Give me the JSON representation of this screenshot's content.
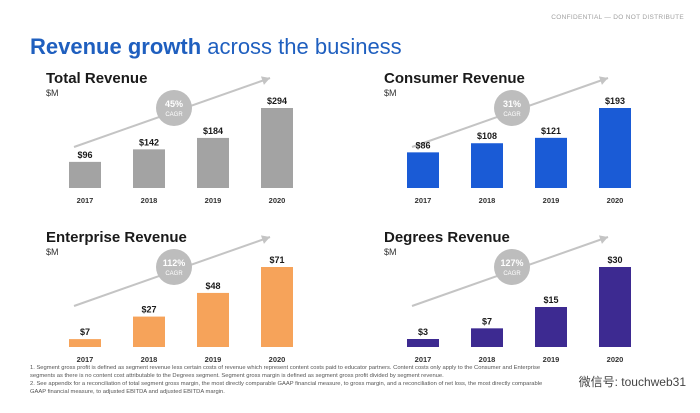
{
  "header": {
    "confidential": "CONFIDENTIAL — DO NOT DISTRIBUTE",
    "title_bold": "Revenue growth",
    "title_rest": " across the business"
  },
  "colors": {
    "gray": "#a3a3a3",
    "blue": "#1a5bd6",
    "orange": "#f6a35a",
    "purple": "#3d2a91",
    "arrow": "#c4c4c4",
    "badge": "#bdbdbd"
  },
  "chart_data": [
    {
      "type": "bar",
      "title": "Total Revenue",
      "unit": "$M",
      "categories": [
        "2017",
        "2018",
        "2019",
        "2020"
      ],
      "values": [
        96,
        142,
        184,
        294
      ],
      "labels": [
        "$96",
        "$142",
        "$184",
        "$294"
      ],
      "cagr": "45%",
      "cagr_label": "CAGR",
      "color_key": "gray"
    },
    {
      "type": "bar",
      "title": "Consumer Revenue",
      "unit": "$M",
      "categories": [
        "2017",
        "2018",
        "2019",
        "2020"
      ],
      "values": [
        86,
        108,
        121,
        193
      ],
      "labels": [
        "$86",
        "$108",
        "$121",
        "$193"
      ],
      "cagr": "31%",
      "cagr_label": "CAGR",
      "color_key": "blue"
    },
    {
      "type": "bar",
      "title": "Enterprise Revenue",
      "unit": "$M",
      "categories": [
        "2017",
        "2018",
        "2019",
        "2020"
      ],
      "values": [
        7,
        27,
        48,
        71
      ],
      "labels": [
        "$7",
        "$27",
        "$48",
        "$71"
      ],
      "cagr": "112%",
      "cagr_label": "CAGR",
      "color_key": "orange"
    },
    {
      "type": "bar",
      "title": "Degrees Revenue",
      "unit": "$M",
      "categories": [
        "2017",
        "2018",
        "2019",
        "2020"
      ],
      "values": [
        3,
        7,
        15,
        30
      ],
      "labels": [
        "$3",
        "$7",
        "$15",
        "$30"
      ],
      "cagr": "127%",
      "cagr_label": "CAGR",
      "color_key": "purple"
    }
  ],
  "footnotes": [
    "1. Segment gross profit is defined as segment revenue less certain costs of revenue which represent content costs paid to educator partners. Content costs only apply to the Consumer and Enterprise",
    "segments as there is no content cost attributable to the Degrees segment. Segment gross margin is defined as segment gross profit divided by segment revenue.",
    "2. See appendix for a reconciliation of total segment gross margin, the most directly comparable GAAP financial measure, to gross margin, and a reconciliation of net loss, the most directly comparable",
    "GAAP financial measure, to adjusted EBITDA and adjusted EBITDA margin."
  ],
  "watermark": "微信号: touchweb31"
}
